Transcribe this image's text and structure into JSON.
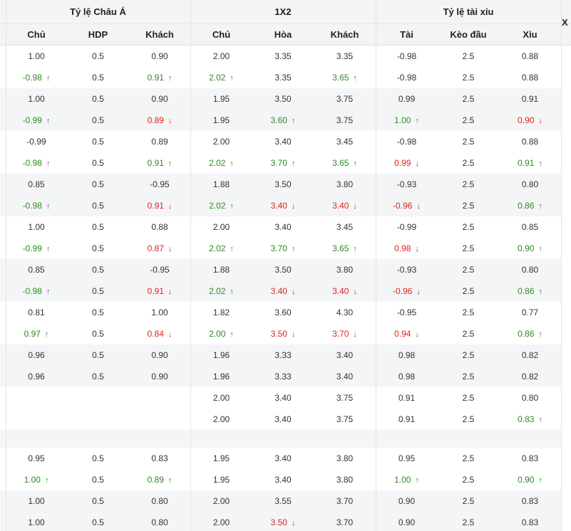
{
  "header": {
    "groups": [
      "Tỷ lệ Châu Á",
      "1X2",
      "Tỷ lệ tài xỉu"
    ],
    "columns": [
      "Chủ",
      "HDP",
      "Khách",
      "Chủ",
      "Hòa",
      "Khách",
      "Tài",
      "Kèo đầu",
      "Xỉu"
    ],
    "cut_label": "X"
  },
  "icons": {
    "up": "arrow-up-icon",
    "down": "arrow-down-icon"
  },
  "colors": {
    "up": "#2e8b22",
    "down": "#e0231c",
    "shade": "#f4f5f7",
    "header": "#f3f4f6"
  },
  "blocks": [
    {
      "shade": false,
      "rows": [
        [
          "1.00",
          "0.5",
          "0.90",
          "2.00",
          "3.35",
          "3.35",
          "-0.98",
          "2.5",
          "0.88"
        ],
        [
          "-0.98↑",
          "0.5",
          "0.91↑",
          "2.02↑",
          "3.35",
          "3.65↑",
          "-0.98",
          "2.5",
          "0.88"
        ]
      ]
    },
    {
      "shade": true,
      "rows": [
        [
          "1.00",
          "0.5",
          "0.90",
          "1.95",
          "3.50",
          "3.75",
          "0.99",
          "2.5",
          "0.91"
        ],
        [
          "-0.99↑",
          "0.5",
          "0.89↓",
          "1.95",
          "3.60↑",
          "3.75",
          "1.00↑",
          "2.5",
          "0.90↓"
        ]
      ]
    },
    {
      "shade": false,
      "rows": [
        [
          "-0.99",
          "0.5",
          "0.89",
          "2.00",
          "3.40",
          "3.45",
          "-0.98",
          "2.5",
          "0.88"
        ],
        [
          "-0.98↑",
          "0.5",
          "0.91↑",
          "2.02↑",
          "3.70↑",
          "3.65↑",
          "0.99↓",
          "2.5",
          "0.91↑"
        ]
      ]
    },
    {
      "shade": true,
      "rows": [
        [
          "0.85",
          "0.5",
          "-0.95",
          "1.88",
          "3.50",
          "3.80",
          "-0.93",
          "2.5",
          "0.80"
        ],
        [
          "-0.98↑",
          "0.5",
          "0.91↓",
          "2.02↑",
          "3.40↓",
          "3.40↓",
          "-0.96↓",
          "2.5",
          "0.86↑"
        ]
      ]
    },
    {
      "shade": false,
      "rows": [
        [
          "1.00",
          "0.5",
          "0.88",
          "2.00",
          "3.40",
          "3.45",
          "-0.99",
          "2.5",
          "0.85"
        ],
        [
          "-0.99↑",
          "0.5",
          "0.87↓",
          "2.02↑",
          "3.70↑",
          "3.65↑",
          "0.98↓",
          "2.5",
          "0.90↑"
        ]
      ]
    },
    {
      "shade": true,
      "rows": [
        [
          "0.85",
          "0.5",
          "-0.95",
          "1.88",
          "3.50",
          "3.80",
          "-0.93",
          "2.5",
          "0.80"
        ],
        [
          "-0.98↑",
          "0.5",
          "0.91↓",
          "2.02↑",
          "3.40↓",
          "3.40↓",
          "-0.96↓",
          "2.5",
          "0.86↑"
        ]
      ]
    },
    {
      "shade": false,
      "rows": [
        [
          "0.81",
          "0.5",
          "1.00",
          "1.82",
          "3.60",
          "4.30",
          "-0.95",
          "2.5",
          "0.77"
        ],
        [
          "0.97↑",
          "0.5",
          "0.84↓",
          "2.00↑",
          "3.50↓",
          "3.70↓",
          "0.94↓",
          "2.5",
          "0.86↑"
        ]
      ]
    },
    {
      "shade": true,
      "rows": [
        [
          "0.96",
          "0.5",
          "0.90",
          "1.96",
          "3.33",
          "3.40",
          "0.98",
          "2.5",
          "0.82"
        ],
        [
          "0.96",
          "0.5",
          "0.90",
          "1.96",
          "3.33",
          "3.40",
          "0.98",
          "2.5",
          "0.82"
        ]
      ]
    },
    {
      "shade": false,
      "rows": [
        [
          "",
          "",
          "",
          "2.00",
          "3.40",
          "3.75",
          "0.91",
          "2.5",
          "0.80"
        ],
        [
          "",
          "",
          "",
          "2.00",
          "3.40",
          "3.75",
          "0.91",
          "2.5",
          "0.83↑"
        ]
      ]
    },
    {
      "shade": true,
      "rows": "spacer"
    },
    {
      "shade": false,
      "rows": [
        [
          "0.95",
          "0.5",
          "0.83",
          "1.95",
          "3.40",
          "3.80",
          "0.95",
          "2.5",
          "0.83"
        ],
        [
          "1.00↑",
          "0.5",
          "0.89↑",
          "1.95",
          "3.40",
          "3.80",
          "1.00↑",
          "2.5",
          "0.90↑"
        ]
      ]
    },
    {
      "shade": true,
      "rows": [
        [
          "1.00",
          "0.5",
          "0.80",
          "2.00",
          "3.55",
          "3.70",
          "0.90",
          "2.5",
          "0.83"
        ],
        [
          "1.00",
          "0.5",
          "0.80",
          "2.00",
          "3.50↓",
          "3.70",
          "0.90",
          "2.5",
          "0.83"
        ]
      ]
    }
  ]
}
